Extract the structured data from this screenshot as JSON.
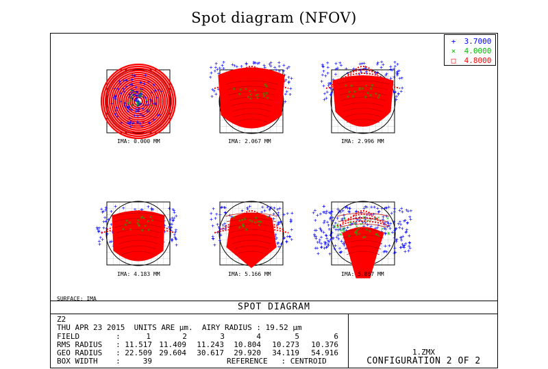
{
  "title": "Spot diagram (NFOV)",
  "legend": [
    {
      "symbol": "+",
      "label": "3.7000",
      "color": "#0000ff"
    },
    {
      "symbol": "×",
      "label": "4.0000",
      "color": "#00c000"
    },
    {
      "symbol": "□",
      "label": "4.8000",
      "color": "#ff0000"
    }
  ],
  "fields": [
    {
      "ima": "IMA: 0.000 MM",
      "shape": "circle"
    },
    {
      "ima": "IMA: 2.067 MM",
      "shape": "tall"
    },
    {
      "ima": "IMA: 2.996 MM",
      "shape": "cup"
    },
    {
      "ima": "IMA: 4.183 MM",
      "shape": "bell"
    },
    {
      "ima": "IMA: 5.166 MM",
      "shape": "bell2"
    },
    {
      "ima": "IMA: 5.867 MM",
      "shape": "wide"
    }
  ],
  "surface": "SURFACE: IMA",
  "section_title": "SPOT DIAGRAM",
  "info": {
    "line1": "Z2",
    "line2": "THU APR 23 2015  UNITS ARE µm.  AIRY RADIUS : 19.52 µm",
    "field_label": "FIELD        :",
    "field_vals": [
      "1",
      "2",
      "3",
      "4",
      "5",
      "6"
    ],
    "rms_label": "RMS RADIUS   :",
    "rms_vals": [
      "11.517",
      "11.409",
      "11.243",
      "10.804",
      "10.273",
      "10.376"
    ],
    "geo_label": "GEO RADIUS   :",
    "geo_vals": [
      "22.509",
      "29.604",
      "30.617",
      "29.920",
      "34.119",
      "54.916"
    ],
    "box_label": "BOX WIDTH    :",
    "box_val": "39",
    "reference": "REFERENCE   : CENTROID"
  },
  "file": "1.ZMX",
  "config": "CONFIGURATION 2 OF 2"
}
